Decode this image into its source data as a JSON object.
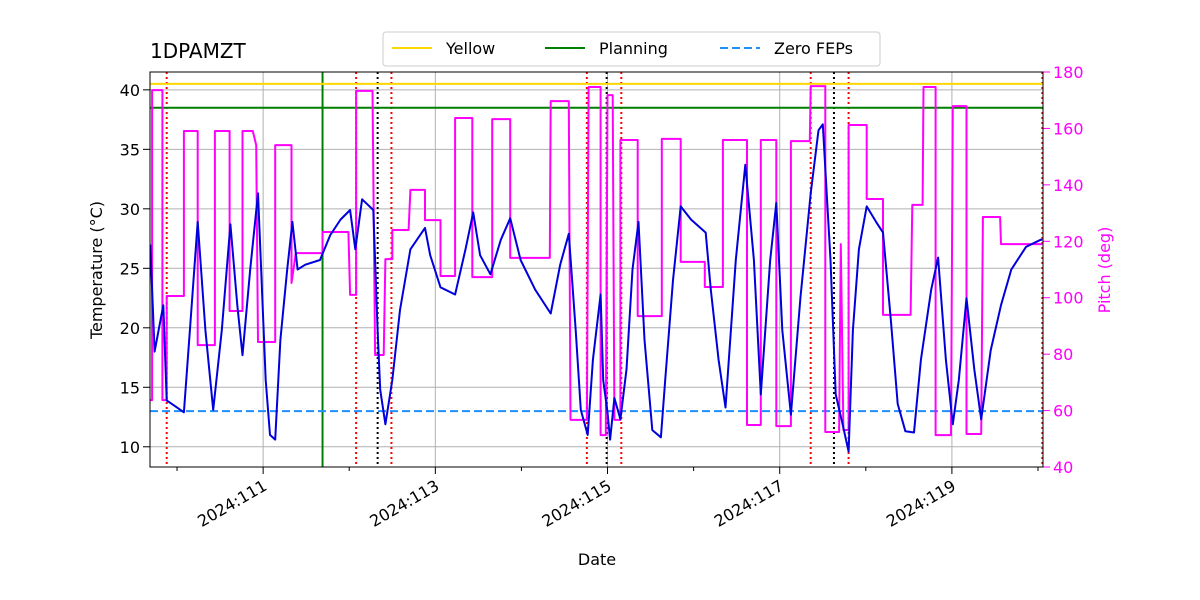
{
  "chart_data": {
    "type": "line",
    "title": "1DPAMZT",
    "xlabel": "Date",
    "ylabel": "Temperature (°C)",
    "y2label": "Pitch (deg)",
    "y2color": "#ff00ff",
    "xlim": [
      109.686,
      120.058
    ],
    "ylim": [
      8.3,
      41.5
    ],
    "y2lim": [
      40,
      180
    ],
    "xticks": [
      {
        "value": 111,
        "label": "2024:111"
      },
      {
        "value": 113,
        "label": "2024:113"
      },
      {
        "value": 115,
        "label": "2024:115"
      },
      {
        "value": 117,
        "label": "2024:117"
      },
      {
        "value": 119,
        "label": "2024:119"
      }
    ],
    "xminorticks": [
      110,
      112,
      114,
      116,
      118,
      120
    ],
    "yticks": [
      10,
      15,
      20,
      25,
      30,
      35,
      40
    ],
    "y2ticks": [
      40,
      60,
      80,
      100,
      120,
      140,
      160,
      180
    ],
    "grid": true,
    "legend": "top",
    "reference_lines": [
      {
        "name": "Yellow",
        "color": "#ffd700",
        "value": 40.5,
        "style": "solid"
      },
      {
        "name": "Planning",
        "color": "#008000",
        "value": 38.5,
        "style": "solid"
      },
      {
        "name": "Zero FEPs",
        "color": "#1e90ff",
        "value": 13,
        "style": "dashed"
      }
    ],
    "vlines": [
      {
        "x": 111.69,
        "color": "#008000",
        "style": "solid"
      },
      {
        "x": 109.88,
        "color": "#ff0000",
        "style": "dotted"
      },
      {
        "x": 112.08,
        "color": "#ff0000",
        "style": "dotted"
      },
      {
        "x": 112.49,
        "color": "#ff0000",
        "style": "dotted"
      },
      {
        "x": 114.76,
        "color": "#ff0000",
        "style": "dotted"
      },
      {
        "x": 115.16,
        "color": "#ff0000",
        "style": "dotted"
      },
      {
        "x": 117.36,
        "color": "#ff0000",
        "style": "dotted"
      },
      {
        "x": 117.8,
        "color": "#ff0000",
        "style": "dotted"
      },
      {
        "x": 120.05,
        "color": "#ff0000",
        "style": "dotted"
      },
      {
        "x": 112.33,
        "color": "#000000",
        "style": "dotted"
      },
      {
        "x": 114.99,
        "color": "#000000",
        "style": "dotted"
      },
      {
        "x": 117.63,
        "color": "#000000",
        "style": "dotted"
      }
    ],
    "series": [
      {
        "color": "#ff00ff",
        "axis": "y2",
        "x": [
          109.69,
          109.71,
          109.71,
          109.83,
          109.83,
          109.88,
          109.88,
          110.08,
          110.08,
          110.24,
          110.24,
          110.44,
          110.44,
          110.61,
          110.61,
          110.76,
          110.76,
          110.88,
          110.92,
          110.94,
          111.14,
          111.14,
          111.33,
          111.33,
          111.38,
          111.69,
          111.69,
          111.99,
          112.01,
          112.08,
          112.08,
          112.27,
          112.3,
          112.4,
          112.42,
          112.5,
          112.5,
          112.69,
          112.71,
          112.88,
          112.88,
          113.06,
          113.06,
          113.23,
          113.23,
          113.43,
          113.43,
          113.66,
          113.66,
          113.87,
          113.87,
          114.33,
          114.34,
          114.55,
          114.57,
          114.76,
          114.78,
          114.92,
          114.92,
          114.98,
          115.0,
          115.06,
          115.08,
          115.15,
          115.15,
          115.35,
          115.35,
          115.63,
          115.63,
          115.85,
          115.85,
          116.13,
          116.13,
          116.34,
          116.34,
          116.62,
          116.62,
          116.78,
          116.78,
          116.96,
          116.96,
          117.13,
          117.13,
          117.35,
          117.36,
          117.53,
          117.53,
          117.69,
          117.71,
          117.74,
          117.8,
          117.8,
          118.01,
          118.01,
          118.2,
          118.2,
          118.52,
          118.54,
          118.66,
          118.67,
          118.81,
          118.81,
          118.99,
          119.01,
          119.17,
          119.17,
          119.34,
          119.36,
          119.56,
          119.57,
          120.05
        ],
        "values": [
          63.7,
          63.7,
          173.6,
          173.6,
          63.7,
          63.7,
          100.6,
          100.6,
          159.1,
          159.1,
          83.2,
          83.2,
          159.1,
          159.1,
          95.3,
          95.3,
          159.1,
          159.1,
          154.1,
          84.3,
          84.3,
          154.1,
          154.1,
          105.2,
          115.8,
          115.8,
          123.3,
          123.3,
          101.0,
          101.0,
          173.3,
          173.3,
          79.7,
          79.7,
          113.7,
          113.7,
          124.0,
          124.0,
          138.2,
          138.2,
          127.5,
          127.5,
          107.7,
          107.7,
          163.7,
          163.7,
          107.3,
          107.3,
          163.3,
          163.3,
          114.1,
          114.1,
          169.7,
          169.7,
          56.7,
          56.7,
          174.7,
          174.7,
          51.3,
          51.3,
          171.8,
          171.8,
          56.7,
          56.7,
          155.9,
          155.9,
          93.5,
          93.5,
          156.3,
          156.3,
          112.7,
          112.7,
          103.8,
          103.8,
          155.9,
          155.9,
          54.9,
          54.9,
          155.9,
          155.9,
          54.5,
          54.5,
          155.5,
          155.5,
          175.0,
          175.0,
          52.4,
          52.4,
          119.0,
          53.1,
          53.1,
          161.2,
          161.2,
          135.0,
          135.0,
          93.9,
          93.9,
          132.9,
          132.9,
          174.7,
          174.7,
          51.3,
          51.3,
          167.9,
          167.9,
          51.7,
          51.7,
          128.6,
          128.6,
          119.0,
          119.0
        ]
      },
      {
        "color": "#0000dd",
        "axis": "y",
        "x": [
          109.69,
          109.74,
          109.84,
          109.88,
          109.98,
          110.08,
          110.15,
          110.24,
          110.33,
          110.42,
          110.52,
          110.62,
          110.7,
          110.76,
          110.85,
          110.94,
          111.03,
          111.08,
          111.14,
          111.2,
          111.28,
          111.34,
          111.4,
          111.49,
          111.66,
          111.78,
          111.9,
          112.01,
          112.07,
          112.15,
          112.28,
          112.33,
          112.36,
          112.42,
          112.5,
          112.59,
          112.71,
          112.88,
          112.94,
          113.06,
          113.23,
          113.35,
          113.44,
          113.52,
          113.64,
          113.76,
          113.87,
          113.99,
          114.16,
          114.34,
          114.45,
          114.55,
          114.63,
          114.69,
          114.77,
          114.83,
          114.92,
          114.95,
          115.0,
          115.03,
          115.08,
          115.15,
          115.22,
          115.29,
          115.36,
          115.43,
          115.52,
          115.62,
          115.67,
          115.76,
          115.85,
          115.97,
          116.14,
          116.2,
          116.29,
          116.37,
          116.49,
          116.6,
          116.7,
          116.78,
          116.89,
          116.96,
          117.03,
          117.13,
          117.24,
          117.36,
          117.45,
          117.5,
          117.59,
          117.65,
          117.73,
          117.8,
          117.85,
          117.92,
          118.01,
          118.12,
          118.2,
          118.29,
          118.37,
          118.46,
          118.56,
          118.64,
          118.76,
          118.84,
          118.93,
          119.01,
          119.08,
          119.17,
          119.26,
          119.34,
          119.45,
          119.57,
          119.69,
          119.86,
          120.03,
          120.05
        ],
        "values": [
          27.0,
          18.0,
          21.9,
          13.9,
          13.4,
          12.9,
          19.8,
          28.9,
          19.8,
          13.1,
          19.8,
          28.7,
          21.9,
          17.7,
          24.9,
          31.3,
          15.6,
          11.0,
          10.6,
          19.0,
          24.9,
          28.9,
          24.9,
          25.3,
          25.7,
          27.8,
          29.1,
          29.9,
          26.6,
          30.8,
          29.9,
          19.8,
          14.8,
          11.9,
          15.6,
          21.5,
          26.6,
          28.4,
          26.1,
          23.4,
          22.8,
          26.6,
          29.7,
          26.1,
          24.5,
          27.4,
          29.2,
          25.7,
          23.2,
          21.2,
          25.3,
          27.9,
          19.8,
          13.1,
          11.0,
          17.3,
          22.8,
          15.6,
          12.9,
          10.6,
          14.1,
          12.3,
          16.5,
          24.9,
          28.9,
          19.0,
          11.4,
          10.8,
          15.6,
          24.0,
          30.2,
          29.1,
          28.0,
          23.2,
          17.3,
          13.3,
          25.7,
          33.7,
          25.7,
          14.4,
          25.7,
          30.5,
          19.8,
          12.7,
          22.5,
          31.3,
          36.6,
          37.1,
          25.7,
          14.4,
          11.9,
          9.6,
          19.8,
          26.6,
          30.2,
          28.9,
          28.0,
          20.7,
          13.6,
          11.3,
          11.2,
          17.3,
          23.2,
          25.9,
          17.3,
          11.9,
          15.6,
          22.5,
          16.5,
          12.3,
          18.1,
          21.9,
          24.9,
          26.8,
          27.4,
          27.4
        ]
      }
    ]
  }
}
